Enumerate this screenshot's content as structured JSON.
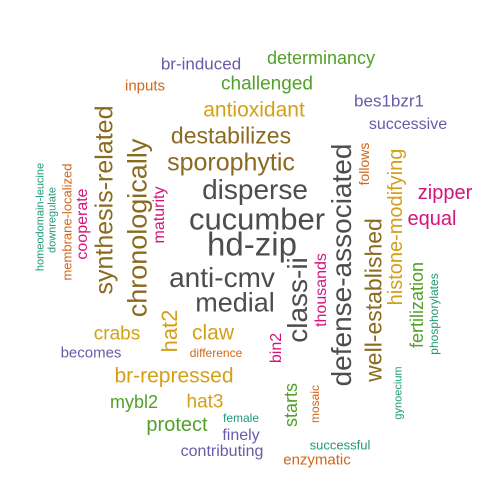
{
  "palette": {
    "grey": "#4d4d4d",
    "brown": "#8a6a1f",
    "gold": "#d4a017",
    "green": "#52a02a",
    "magenta": "#d4147c",
    "purple": "#6a5aa8",
    "orange": "#d2661a",
    "teal": "#1f9a78"
  },
  "words": {
    "hd_zip": "hd-zip",
    "cucumber": "cucumber",
    "disperse": "disperse",
    "anti_cmv": "anti-cmv",
    "medial": "medial",
    "defense_associated": "defense-associated",
    "class_ii": "class-ii",
    "chronologically": "chronologically",
    "synthesis_related": "synthesis-related",
    "sporophytic": "sporophytic",
    "destabilizes": "destabilizes",
    "antioxidant": "antioxidant",
    "challenged": "challenged",
    "determinancy": "determinancy",
    "br_induced": "br-induced",
    "inputs": "inputs",
    "bes1bzr1": "bes1bzr1",
    "successive": "successive",
    "follows": "follows",
    "zipper": "zipper",
    "equal": "equal",
    "histone_modifying": "histone-modifying",
    "well_established": "well-established",
    "fertilization": "fertilization",
    "phosphorylates": "phosphorylates",
    "gynoecium": "gynoecium",
    "thousands": "thousands",
    "maturity": "maturity",
    "hat2": "hat2",
    "cooperate": "cooperate",
    "membrane_localized": "membrane-localized",
    "downregulate": "downregulate",
    "homeodomain_leucine": "homeodomain-leucine",
    "crabs": "crabs",
    "claw": "claw",
    "becomes": "becomes",
    "difference": "difference",
    "br_repressed": "br-repressed",
    "bin2": "bin2",
    "hat3": "hat3",
    "mybl2": "mybl2",
    "protect": "protect",
    "female": "female",
    "finely": "finely",
    "starts": "starts",
    "mosaic": "mosaic",
    "successful": "successful",
    "contributing": "contributing",
    "enzymatic": "enzymatic"
  }
}
